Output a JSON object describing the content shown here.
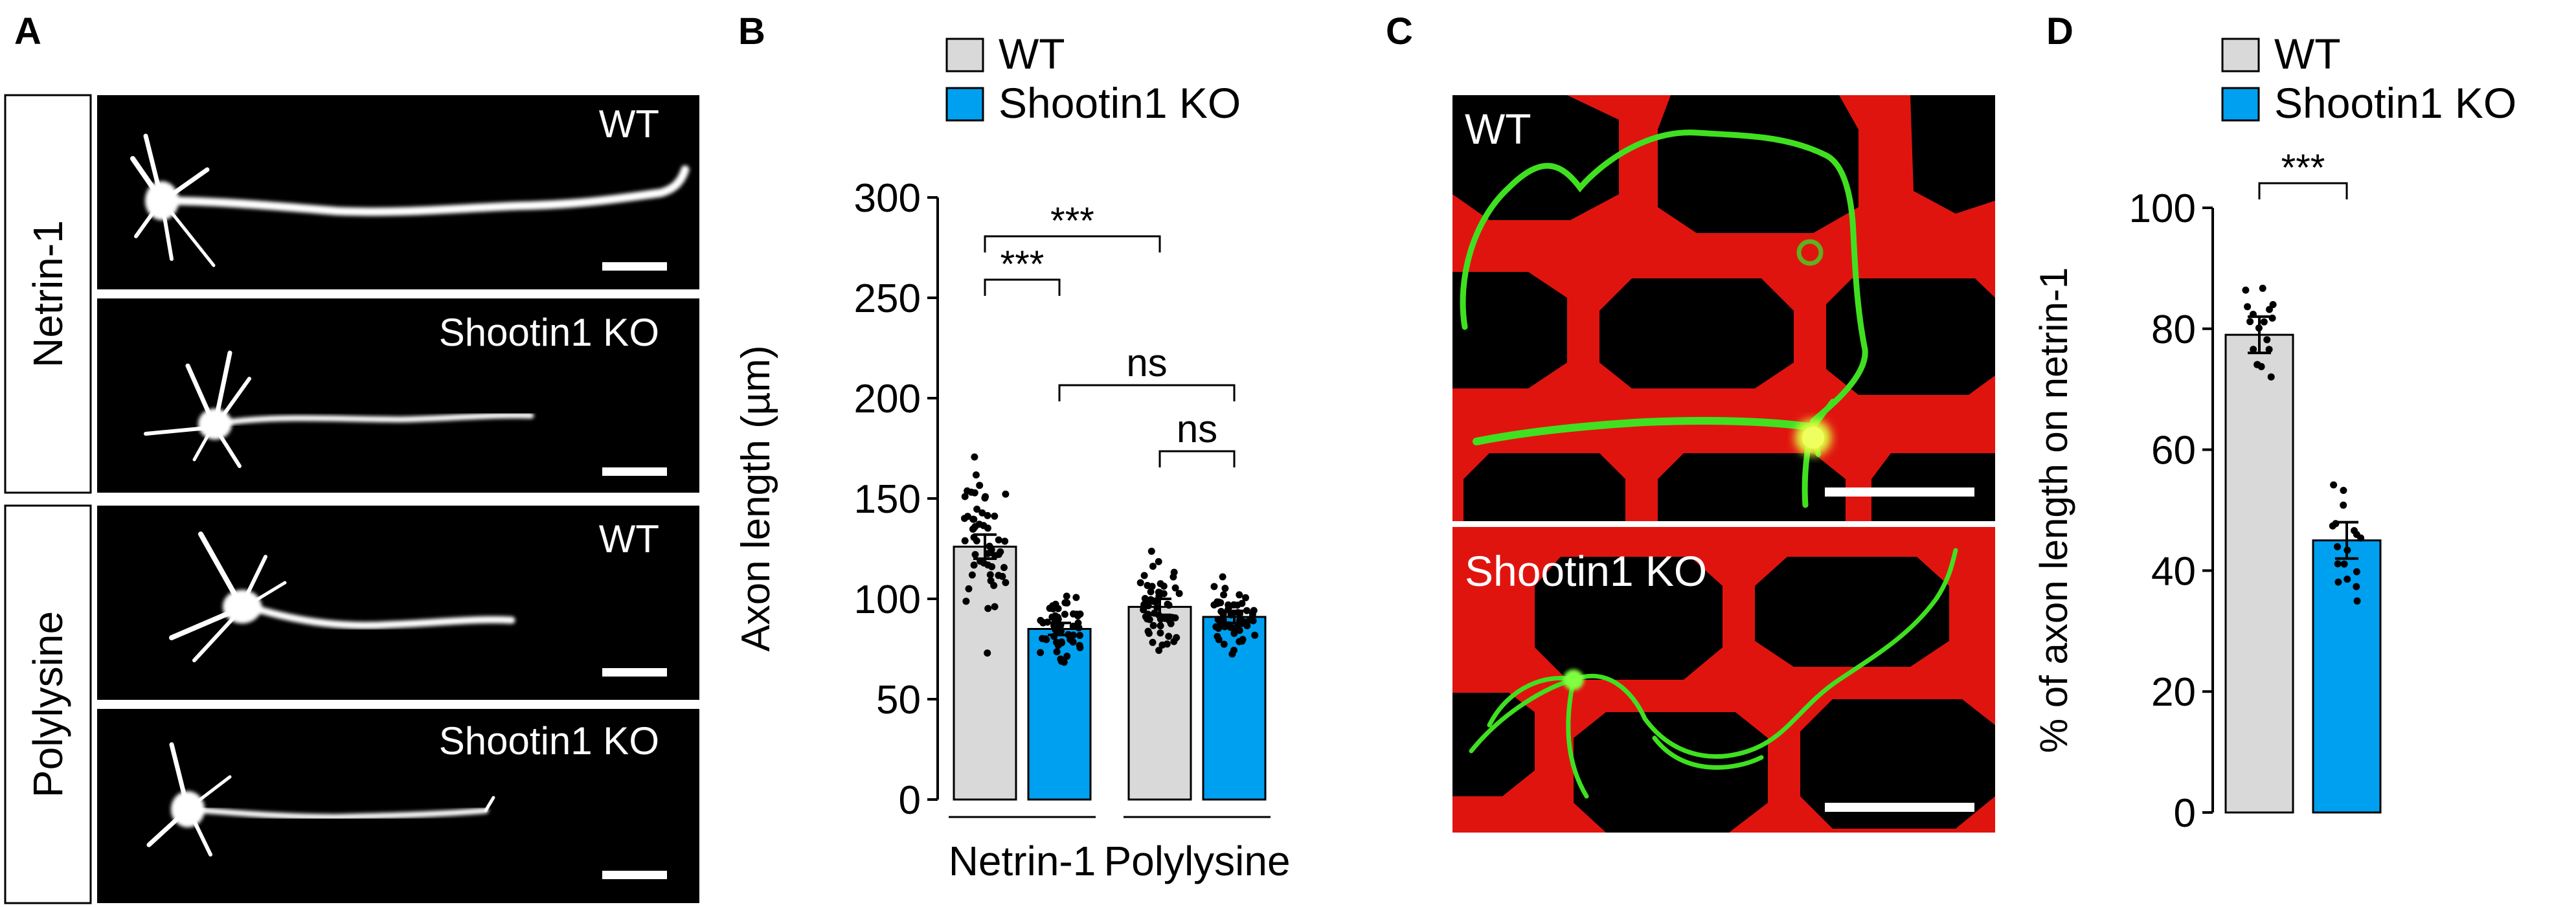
{
  "panel_labels": [
    "A",
    "B",
    "C",
    "D"
  ],
  "panel_a": {
    "row_groups": [
      "Netrin-1",
      "Polylysine"
    ],
    "image_labels": [
      "WT",
      "Shootin1 KO",
      "WT",
      "Shootin1 KO"
    ]
  },
  "panel_c": {
    "image_labels": [
      "WT",
      "Shootin1 KO"
    ]
  },
  "colors": {
    "wt": "#d9d9d9",
    "ko": "#00a0f0",
    "substrate": "#e0140f",
    "axon": "#40e020"
  },
  "chart_data": [
    {
      "panel": "B",
      "type": "bar",
      "ylabel": "Axon length (µm)",
      "ylim": [
        0,
        300
      ],
      "yticks": [
        0,
        50,
        100,
        150,
        200,
        250,
        300
      ],
      "groups": [
        "Netrin-1",
        "Polylysine"
      ],
      "legend": [
        "WT",
        "Shootin1 KO"
      ],
      "legend_position": "top",
      "bars": [
        {
          "group": "Netrin-1",
          "series": "WT",
          "mean": 126,
          "sem": 6
        },
        {
          "group": "Netrin-1",
          "series": "Shootin1 KO",
          "mean": 85,
          "sem": 3
        },
        {
          "group": "Polylysine",
          "series": "WT",
          "mean": 96,
          "sem": 4
        },
        {
          "group": "Polylysine",
          "series": "Shootin1 KO",
          "mean": 91,
          "sem": 3
        }
      ],
      "comparisons": [
        {
          "bars": [
            0,
            1
          ],
          "label": "***"
        },
        {
          "bars": [
            0,
            2
          ],
          "label": "***"
        },
        {
          "bars": [
            1,
            3
          ],
          "label": "ns"
        },
        {
          "bars": [
            2,
            3
          ],
          "label": "ns"
        }
      ]
    },
    {
      "panel": "D",
      "type": "bar",
      "ylabel": "% of axon length on netrin-1",
      "ylim": [
        0,
        100
      ],
      "yticks": [
        0,
        20,
        40,
        60,
        80,
        100
      ],
      "categories": [
        "WT",
        "Shootin1 KO"
      ],
      "legend": [
        "WT",
        "Shootin1 KO"
      ],
      "legend_position": "top",
      "bars": [
        {
          "series": "WT",
          "mean": 79,
          "sem": 3
        },
        {
          "series": "Shootin1 KO",
          "mean": 45,
          "sem": 3
        }
      ],
      "comparisons": [
        {
          "bars": [
            0,
            1
          ],
          "label": "***"
        }
      ]
    }
  ]
}
